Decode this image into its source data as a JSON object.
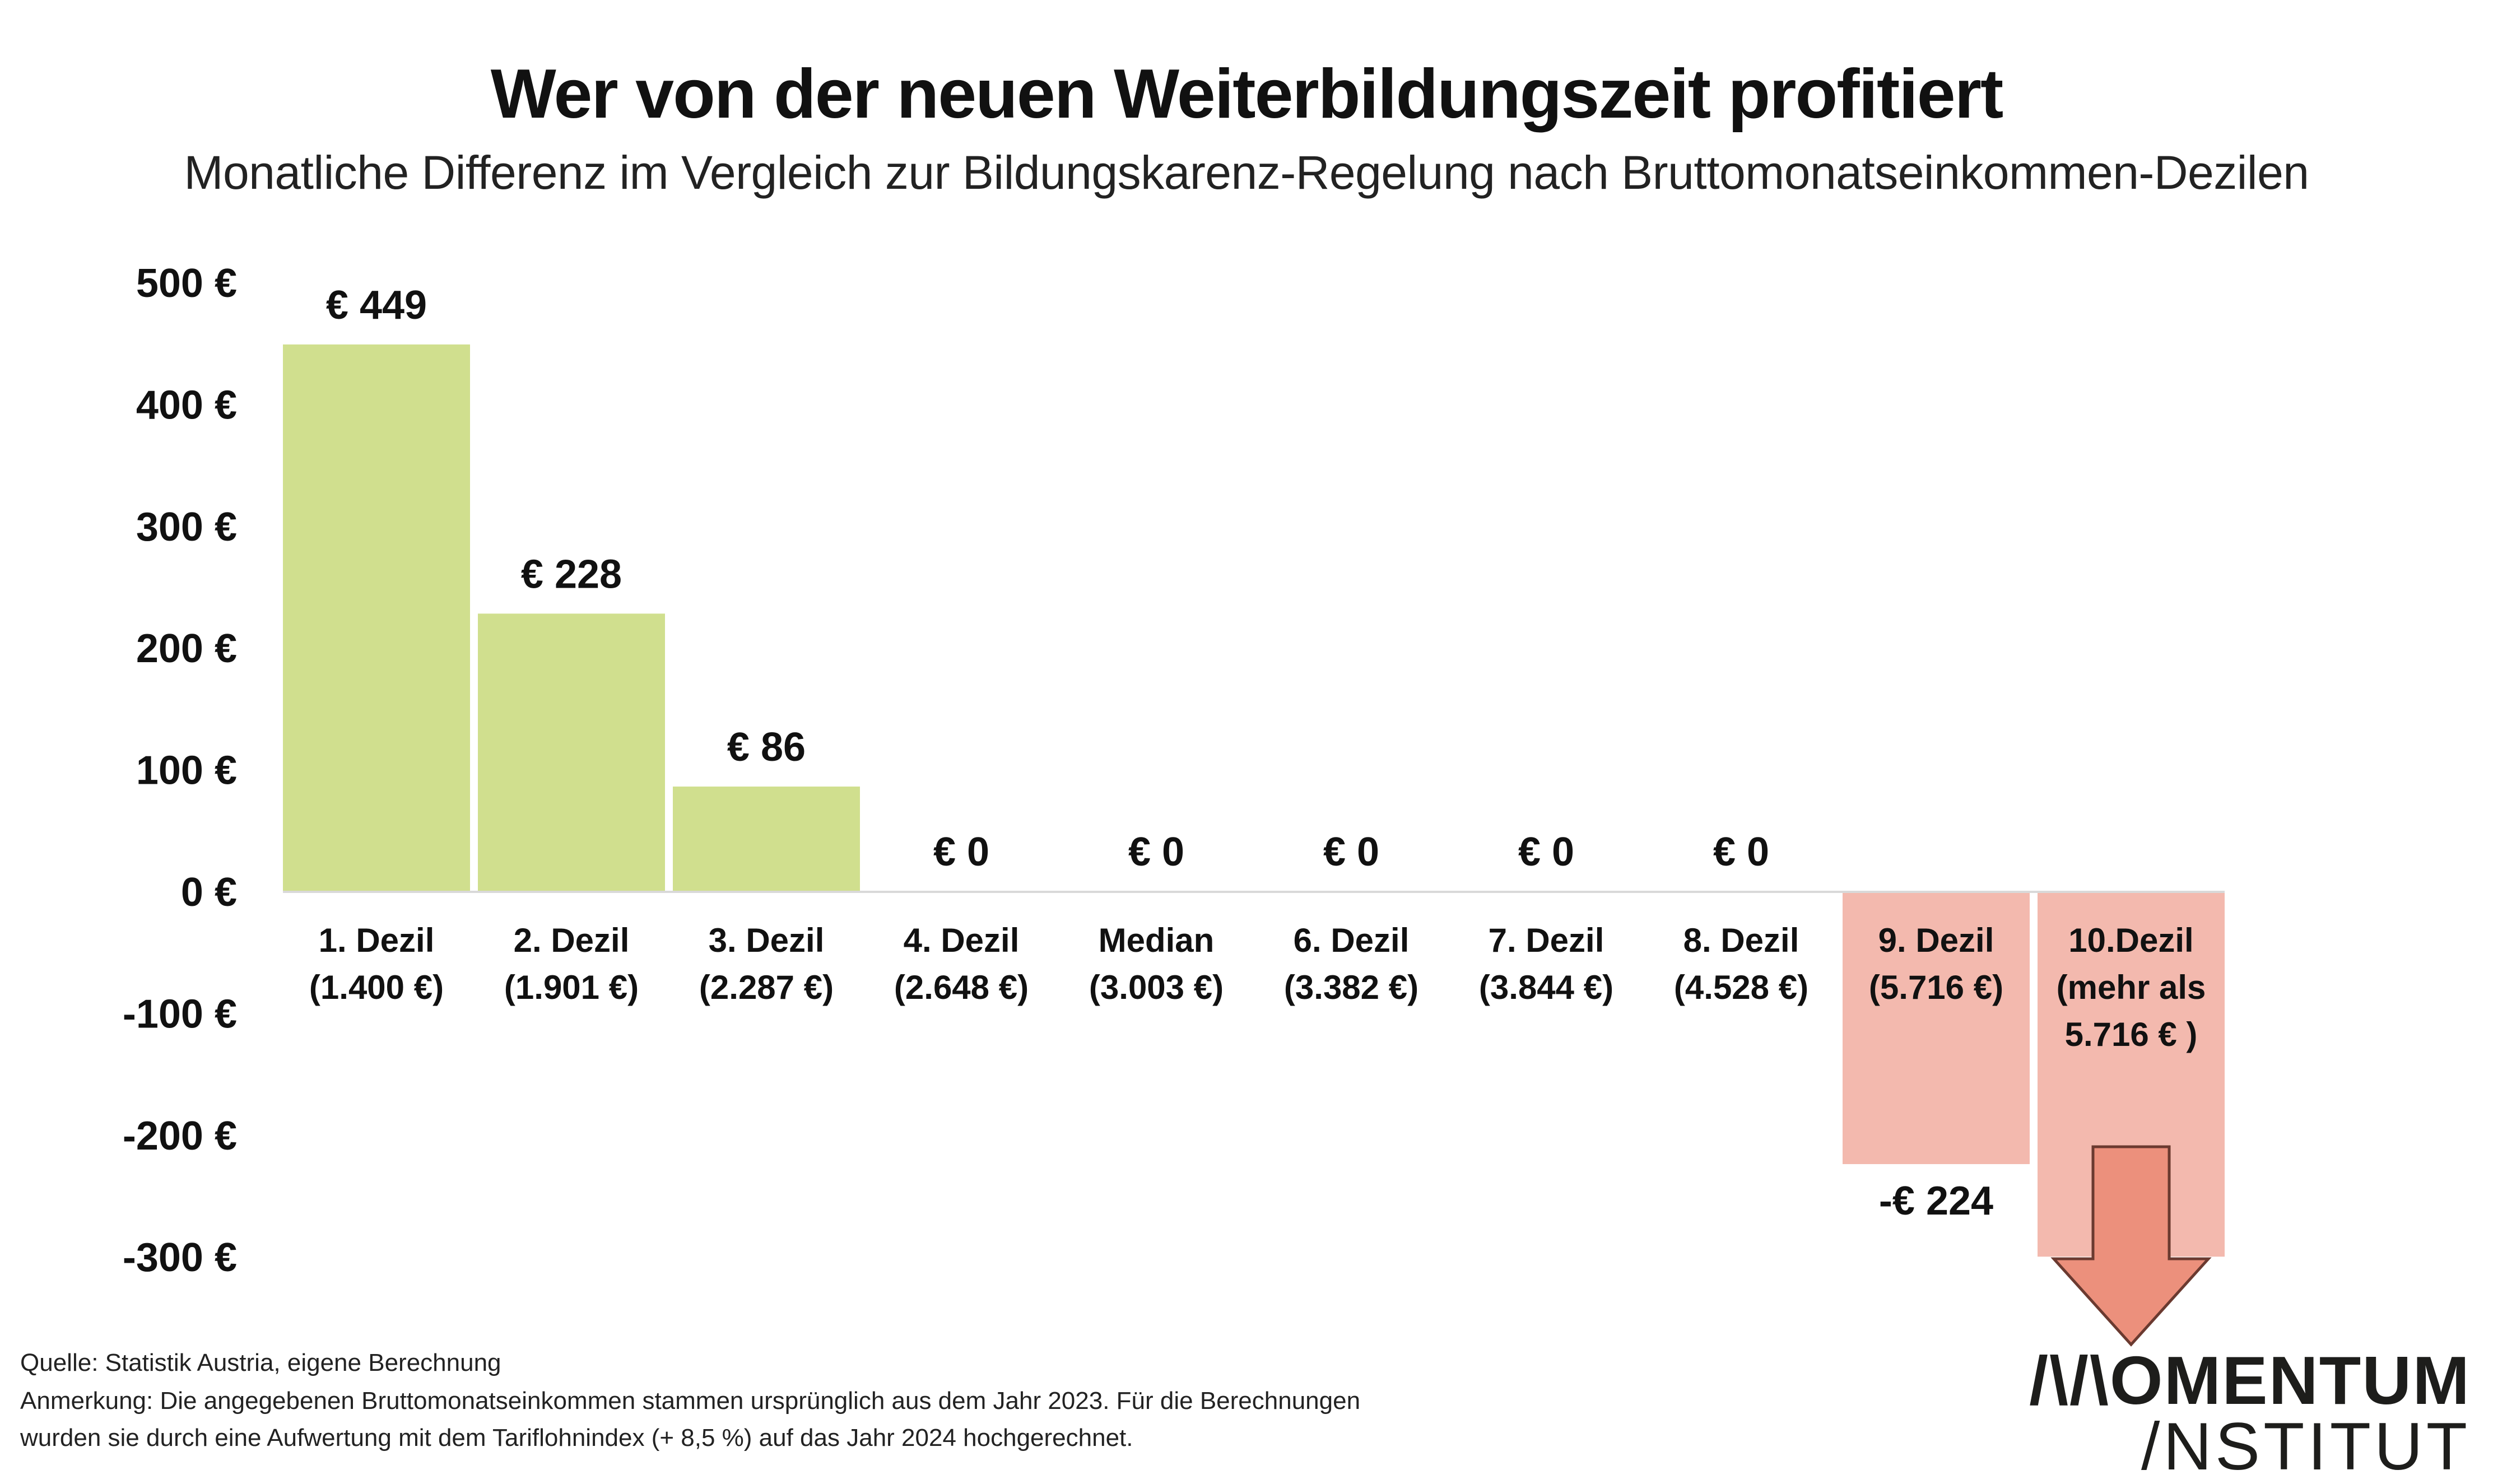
{
  "header": {
    "title": "Wer von der neuen Weiterbildungszeit profitiert",
    "subtitle": "Monatliche Differenz im Vergleich zur Bildungskarenz-Regelung nach Bruttomonatseinkommen-Dezilen"
  },
  "chart_data": {
    "type": "bar",
    "title": "Wer von der neuen Weiterbildungszeit profitiert",
    "subtitle": "Monatliche Differenz im Vergleich zur Bildungskarenz-Regelung nach Bruttomonatseinkommen-Dezilen",
    "xlabel": "",
    "ylabel": "",
    "ylim": [
      -300,
      500
    ],
    "yticks": [
      500,
      400,
      300,
      200,
      100,
      0,
      -100,
      -200,
      -300
    ],
    "ytick_labels": [
      "500 €",
      "400 €",
      "300 €",
      "200 €",
      "100 €",
      "0 €",
      "-100 €",
      "-200 €",
      "-300 €"
    ],
    "grid": false,
    "categories": [
      [
        "1. Dezil",
        "(1.400 €)"
      ],
      [
        "2. Dezil",
        "(1.901 €)"
      ],
      [
        "3. Dezil",
        "(2.287 €)"
      ],
      [
        "4. Dezil",
        "(2.648 €)"
      ],
      [
        "Median",
        "(3.003 €)"
      ],
      [
        "6. Dezil",
        "(3.382 €)"
      ],
      [
        "7. Dezil",
        "(3.844 €)"
      ],
      [
        "8. Dezil",
        "(4.528 €)"
      ],
      [
        "9. Dezil",
        "(5.716 €)"
      ],
      [
        "10.Dezil",
        "(mehr als",
        "5.716 € )"
      ]
    ],
    "values": [
      449,
      228,
      86,
      0,
      0,
      0,
      0,
      0,
      -224,
      -300
    ],
    "value_labels": [
      "€ 449",
      "€ 228",
      "€ 86",
      "€ 0",
      "€ 0",
      "€ 0",
      "€ 0",
      "€ 0",
      "-€ 224",
      ""
    ],
    "annotations": [
      {
        "category": "10.Dezil",
        "type": "down-arrow",
        "meaning": "loss exceeds axis range (more than -300 €)"
      }
    ],
    "colors": {
      "positive": "#d0df8e",
      "negative": "#f3b9ae",
      "arrow_fill": "#ec907c",
      "arrow_stroke": "#6b3a30",
      "axis": "#d9d9d9"
    }
  },
  "footer": {
    "source": "Quelle: Statistik Austria, eigene Berechnung",
    "note_line1": "Anmerkung: Die angegebenen Bruttomonatseinkommen stammen ursprünglich aus dem Jahr 2023. Für die Berechnungen",
    "note_line2": "wurden sie durch eine Aufwertung mit dem Tariflohnindex (+ 8,5 %) auf das Jahr 2024 hochgerechnet."
  },
  "logo": {
    "line1": "/\\/\\OMENTUM",
    "line2": "/NSTITUT"
  }
}
